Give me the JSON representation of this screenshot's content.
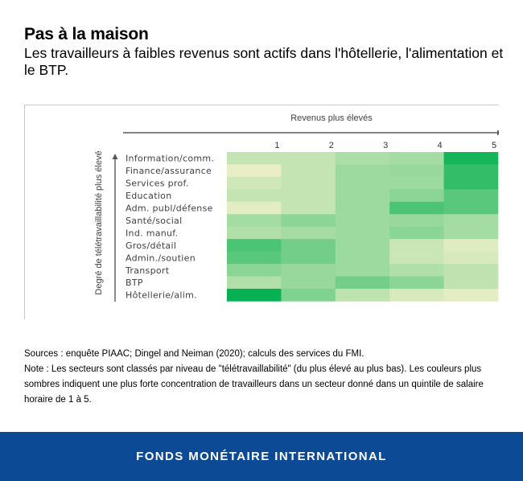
{
  "header": {
    "title": "Pas à la maison",
    "subtitle": "Les travailleurs à faibles revenus sont actifs dans l'hôtellerie, l'alimentation et le BTP."
  },
  "chart_data": {
    "type": "heatmap",
    "xlabel": "Revenus plus élevés",
    "ylabel": "Degré de télétravaillabilité plus élevé",
    "x": [
      "1",
      "2",
      "3",
      "4",
      "5"
    ],
    "y": [
      "Information/comm.",
      "Finance/assurance",
      "Services prof.",
      "Education",
      "Adm. publ/défense",
      "Santé/social",
      "Ind. manuf.",
      "Gros/détail",
      "Admin./soutien",
      "Transport",
      "BTP",
      "Hôtellerie/alim."
    ],
    "values": [
      [
        0.22,
        0.22,
        0.32,
        0.35,
        0.92
      ],
      [
        0.08,
        0.22,
        0.38,
        0.4,
        0.8
      ],
      [
        0.18,
        0.22,
        0.38,
        0.38,
        0.8
      ],
      [
        0.22,
        0.22,
        0.38,
        0.45,
        0.65
      ],
      [
        0.1,
        0.22,
        0.38,
        0.7,
        0.65
      ],
      [
        0.35,
        0.45,
        0.38,
        0.4,
        0.35
      ],
      [
        0.3,
        0.35,
        0.38,
        0.45,
        0.35
      ],
      [
        0.7,
        0.55,
        0.38,
        0.2,
        0.12
      ],
      [
        0.65,
        0.55,
        0.38,
        0.2,
        0.15
      ],
      [
        0.45,
        0.4,
        0.38,
        0.3,
        0.25
      ],
      [
        0.3,
        0.4,
        0.55,
        0.45,
        0.25
      ],
      [
        0.98,
        0.5,
        0.25,
        0.15,
        0.1
      ]
    ],
    "color_low": "#fdf3d0",
    "color_high": "#00b04f"
  },
  "notes": {
    "sources": "Sources : enquête PIAAC; Dingel and Neiman (2020); calculs des services du FMI.",
    "note": "Note : Les secteurs sont classés par niveau de \"télétravaillabilité\" (du plus élevé au plus bas). Les couleurs plus sombres indiquent une plus forte concentration de travailleurs dans un secteur donné dans un quintile de salaire horaire de 1 à 5."
  },
  "footer": {
    "label": "FONDS MONÉTAIRE INTERNATIONAL",
    "background": "#0d4a96"
  }
}
